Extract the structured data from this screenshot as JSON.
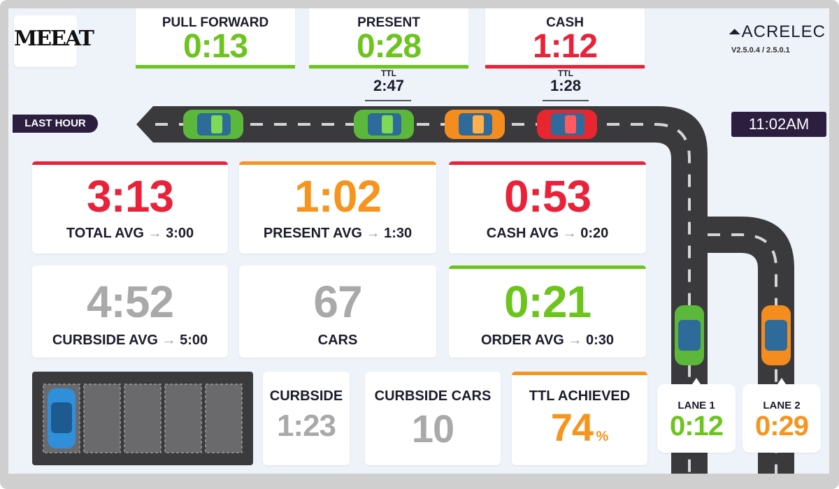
{
  "logo": {
    "text": "MEEAT"
  },
  "brand": {
    "name": "ACRELEC",
    "version": "V2.5.0.4 / 2.5.0.1"
  },
  "top_timers": [
    {
      "label": "PULL FORWARD",
      "value": "0:13",
      "color": "#6cc41d"
    },
    {
      "label": "PRESENT",
      "value": "0:28",
      "color": "#6cc41d"
    },
    {
      "label": "CASH",
      "value": "1:12",
      "color": "#ea2138"
    }
  ],
  "ttl_markers": [
    {
      "label": "TTL",
      "value": "2:47"
    },
    {
      "label": "TTL",
      "value": "1:28"
    }
  ],
  "last_hour": "LAST HOUR",
  "clock": "11:02AM",
  "stats": [
    {
      "value": "3:13",
      "label": "TOTAL AVG",
      "arrow": "→",
      "target": "3:00",
      "color": "#ea2138"
    },
    {
      "value": "1:02",
      "label": "PRESENT AVG",
      "arrow": "→",
      "target": "1:30",
      "color": "#f7941d"
    },
    {
      "value": "0:53",
      "label": "CASH AVG",
      "arrow": "→",
      "target": "0:20",
      "color": "#ea2138"
    },
    {
      "value": "4:52",
      "label": "CURBSIDE AVG",
      "arrow": "→",
      "target": "5:00",
      "color": "#a9a9a9"
    },
    {
      "value": "67",
      "label": "CARS",
      "color": "#a9a9a9"
    },
    {
      "value": "0:21",
      "label": "ORDER AVG",
      "arrow": "→",
      "target": "0:30",
      "color": "#6cc41d"
    }
  ],
  "bottom": {
    "curbside": {
      "label": "CURBSIDE",
      "value": "1:23"
    },
    "curbside_cars": {
      "label": "CURBSIDE CARS",
      "value": "10"
    },
    "ttl_achieved": {
      "label": "TTL ACHIEVED",
      "value": "74",
      "unit": "%"
    }
  },
  "lanes": [
    {
      "label": "LANE 1",
      "value": "0:12",
      "color": "#6cc41d"
    },
    {
      "label": "LANE 2",
      "value": "0:29",
      "color": "#f7941d"
    }
  ]
}
